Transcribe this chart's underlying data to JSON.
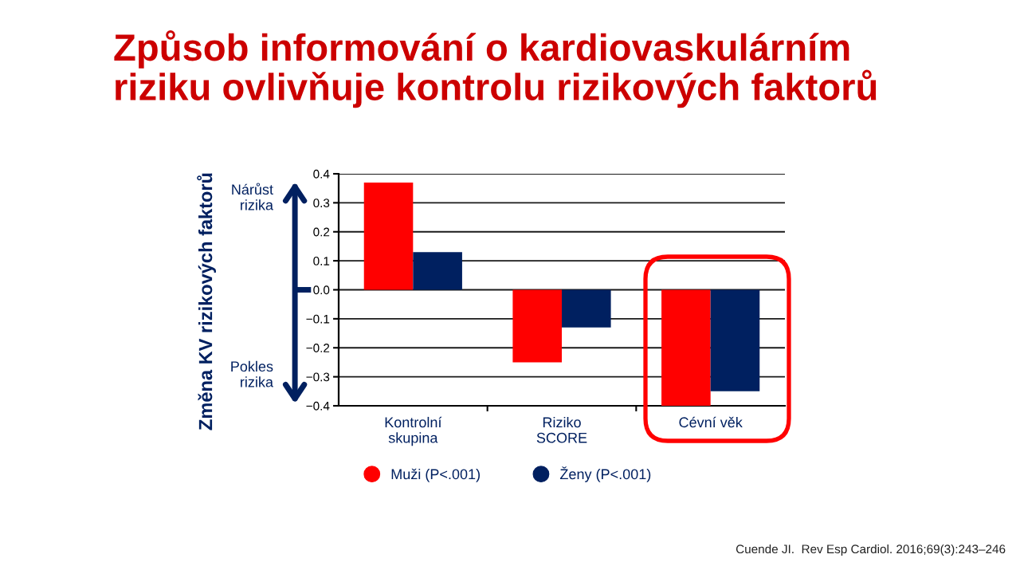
{
  "chart_data": {
    "type": "bar",
    "title": "Způsob informování o kardiovaskulárním\nriziku ovlivňuje kontrolu rizikových faktorů",
    "ylabel": "Změna KV rizikových faktorů",
    "categories": [
      "Kontrolní\nskupina",
      "Riziko\nSCORE",
      "Cévní věk"
    ],
    "series": [
      {
        "name": "Muži (P<.001)",
        "color": "#ff0000",
        "values": [
          0.37,
          -0.25,
          -0.4
        ]
      },
      {
        "name": "Ženy (P<.001)",
        "color": "#002060",
        "values": [
          0.13,
          -0.13,
          -0.35
        ]
      }
    ],
    "ylim": [
      -0.4,
      0.4
    ],
    "yticks": [
      {
        "value": -0.4,
        "label": "−0.4"
      },
      {
        "value": -0.3,
        "label": "−0.3"
      },
      {
        "value": -0.2,
        "label": "−0.2"
      },
      {
        "value": -0.1,
        "label": "−0.1"
      },
      {
        "value": 0,
        "label": "0.0"
      },
      0.1,
      0.2,
      0.3,
      0.4
    ],
    "grid": "y",
    "legend": "bottom",
    "annotations": [
      "Nárůst\nrizika",
      "Pokles\nrizika",
      "Cuende JI.  Rev Esp Cardiol. 2016;69(3):243–246"
    ]
  }
}
